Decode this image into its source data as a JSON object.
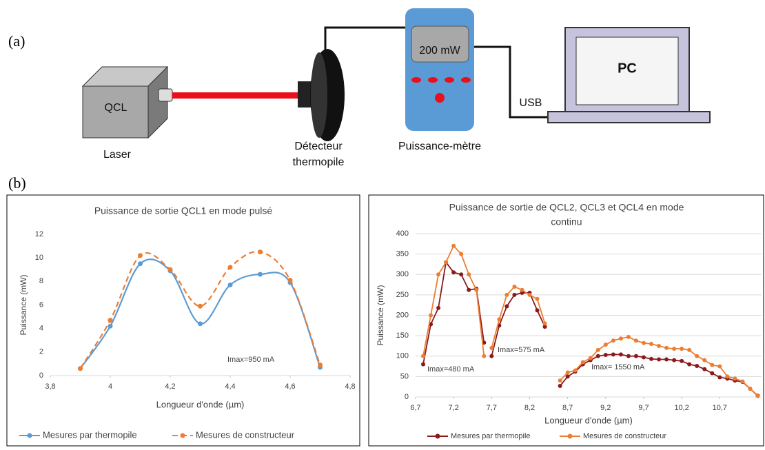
{
  "diagram": {
    "label_a": "(a)",
    "label_b": "(b)",
    "laser_box": "QCL",
    "laser": "Laser",
    "detector": [
      "Détecteur",
      "thermopile"
    ],
    "meter_display": "200 mW",
    "meter": "Puissance-mètre",
    "usb": "USB",
    "pc": "PC"
  },
  "chart_data": [
    {
      "type": "line",
      "smooth": true,
      "grid": false,
      "legend": "bottom",
      "title": [
        "Puissance de sortie QCL1 en mode pulsé"
      ],
      "xlabel": "Longueur d'onde (µm)",
      "ylabel": "Puissance (mW)",
      "x": [
        3.9,
        4.0,
        4.1,
        4.2,
        4.3,
        4.4,
        4.5,
        4.6,
        4.7
      ],
      "xlim": [
        3.8,
        4.8
      ],
      "xticks": [
        {
          "value": 3.8,
          "label": "3,8"
        },
        4,
        {
          "value": 4.2,
          "label": "4,2"
        },
        {
          "value": 4.4,
          "label": "4,4"
        },
        {
          "value": 4.6,
          "label": "4,6"
        },
        {
          "value": 4.8,
          "label": "4,8"
        }
      ],
      "ylim": [
        0,
        12
      ],
      "yticks": [
        0,
        2,
        4,
        6,
        8,
        10,
        12
      ],
      "series": [
        {
          "name": "Mesures par thermopile",
          "color": "#5b9bd5",
          "dashed": false,
          "values": [
            0.6,
            4.2,
            9.5,
            8.9,
            4.4,
            7.7,
            8.6,
            7.9,
            0.7
          ]
        },
        {
          "name": "Mesures de constructeur",
          "color": "#ed7d31",
          "dashed": true,
          "values": [
            0.6,
            4.7,
            10.2,
            9.0,
            5.9,
            9.2,
            10.5,
            8.1,
            0.9
          ]
        }
      ],
      "annotations": [
        "Imax=950 mA"
      ]
    },
    {
      "type": "line",
      "smooth": false,
      "grid": true,
      "legend": "bottom",
      "title": [
        "Puissance de sortie de QCL2, QCL3 et QCL4 en mode",
        "continu"
      ],
      "xlabel": "Longueur d'onde (µm)",
      "ylabel": "Puissance (mW)",
      "x": [
        6.8,
        6.9,
        7.0,
        7.1,
        7.2,
        7.3,
        7.4,
        7.5,
        7.6,
        null,
        7.7,
        7.8,
        7.9,
        8.0,
        8.1,
        8.2,
        8.3,
        8.4,
        null,
        8.6,
        8.7,
        8.8,
        8.9,
        9.0,
        9.1,
        9.2,
        9.3,
        9.4,
        9.5,
        9.6,
        9.7,
        9.8,
        9.9,
        10.0,
        10.1,
        10.2,
        10.3,
        10.4,
        10.5,
        10.6,
        10.7,
        10.8,
        10.9,
        11.0,
        11.1,
        11.2
      ],
      "xlim": [
        6.7,
        11.25
      ],
      "xticks": [
        {
          "value": 6.7,
          "label": "6,7"
        },
        {
          "value": 7.2,
          "label": "7,2"
        },
        {
          "value": 7.7,
          "label": "7,7"
        },
        {
          "value": 8.2,
          "label": "8,2"
        },
        {
          "value": 8.7,
          "label": "8,7"
        },
        {
          "value": 9.2,
          "label": "9,2"
        },
        {
          "value": 9.7,
          "label": "9,7"
        },
        {
          "value": 10.2,
          "label": "10,2"
        },
        {
          "value": 10.7,
          "label": "10,7"
        }
      ],
      "ylim": [
        0,
        400
      ],
      "yticks": [
        0,
        50,
        100,
        150,
        200,
        250,
        300,
        350,
        400
      ],
      "series": [
        {
          "name": "Mesures par thermopile",
          "color": "#8b1a1a",
          "dashed": false,
          "values": [
            80,
            178,
            218,
            330,
            305,
            300,
            262,
            265,
            133,
            null,
            100,
            175,
            222,
            250,
            255,
            255,
            212,
            172,
            null,
            27,
            50,
            62,
            80,
            90,
            100,
            103,
            104,
            104,
            100,
            100,
            97,
            93,
            92,
            92,
            90,
            88,
            80,
            76,
            68,
            58,
            48,
            45,
            40,
            37,
            20,
            3
          ]
        },
        {
          "name": "Mesures de constructeur",
          "color": "#ed7d31",
          "dashed": false,
          "values": [
            100,
            200,
            300,
            330,
            370,
            350,
            300,
            262,
            100,
            null,
            120,
            190,
            250,
            270,
            262,
            250,
            240,
            180,
            null,
            40,
            60,
            65,
            85,
            95,
            115,
            128,
            138,
            143,
            147,
            138,
            132,
            130,
            125,
            120,
            118,
            118,
            115,
            100,
            90,
            78,
            75,
            50,
            45,
            38,
            20,
            2
          ]
        }
      ],
      "annotations": [
        "Imax=480 mA",
        "Imax=575 mA",
        "Imax= 1550 mA"
      ]
    }
  ]
}
